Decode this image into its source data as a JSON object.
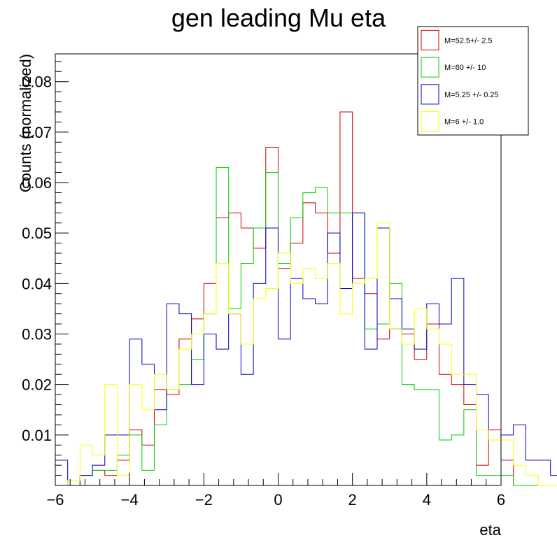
{
  "chart_data": {
    "type": "histogram",
    "title": "gen leading Mu eta",
    "xlabel": "eta",
    "ylabel": "Counts (normalized)",
    "xlim": [
      -6,
      6
    ],
    "ylim": [
      0,
      0.0855
    ],
    "x_ticks": [
      -6,
      -4,
      -2,
      0,
      2,
      4,
      6
    ],
    "y_ticks": [
      0.01,
      0.02,
      0.03,
      0.04,
      0.05,
      0.06,
      0.07,
      0.08
    ],
    "x_tick_labels": [
      "−6",
      "−4",
      "−2",
      "0",
      "2",
      "4",
      "6"
    ],
    "y_tick_labels": [
      "0.01",
      "0.02",
      "0.03",
      "0.04",
      "0.05",
      "0.06",
      "0.07",
      "0.08"
    ],
    "bin_edges_start": -6,
    "bin_width": 0.3333,
    "legend_position": "top-right",
    "grid": false,
    "series": [
      {
        "name": "M=52.5+/- 2.5",
        "color": "#cc0000",
        "values": [
          0.0,
          0.0,
          0.002,
          0.003,
          0.002,
          0.005,
          0.011,
          0.008,
          0.019,
          0.018,
          0.029,
          0.033,
          0.04,
          0.053,
          0.054,
          0.051,
          0.047,
          0.067,
          0.043,
          0.048,
          0.056,
          0.054,
          0.046,
          0.074,
          0.041,
          0.038,
          0.029,
          0.031,
          0.03,
          0.025,
          0.032,
          0.022,
          0.02,
          0.016,
          0.004,
          0.011,
          0.005,
          0.0,
          0.0,
          0.0,
          0.0,
          0.0,
          0.0,
          0.0,
          0.0,
          0.0,
          0.0,
          0.0
        ]
      },
      {
        "name": "M=60 +/- 10",
        "color": "#00cc00",
        "values": [
          0.0,
          0.0,
          0.002,
          0.003,
          0.003,
          0.006,
          0.01,
          0.003,
          0.012,
          0.019,
          0.02,
          0.025,
          0.034,
          0.063,
          0.035,
          0.044,
          0.051,
          0.062,
          0.044,
          0.053,
          0.058,
          0.059,
          0.054,
          0.054,
          0.054,
          0.031,
          0.032,
          0.04,
          0.02,
          0.019,
          0.019,
          0.009,
          0.01,
          0.015,
          0.002,
          0.002,
          0.002,
          0.0,
          0.0,
          0.0,
          0.0,
          0.0,
          0.0,
          0.0,
          0.0,
          0.0,
          0.0,
          0.0
        ]
      },
      {
        "name": "M=5.25 +/- 0.25",
        "color": "#0000cc",
        "values": [
          0.005,
          0.0,
          0.002,
          0.004,
          0.01,
          0.01,
          0.029,
          0.024,
          0.015,
          0.036,
          0.034,
          0.02,
          0.03,
          0.027,
          0.034,
          0.022,
          0.04,
          0.051,
          0.029,
          0.041,
          0.037,
          0.036,
          0.05,
          0.039,
          0.054,
          0.027,
          0.051,
          0.037,
          0.031,
          0.027,
          0.036,
          0.032,
          0.041,
          0.02,
          0.018,
          0.009,
          0.01,
          0.012,
          0.005,
          0.005,
          0.002,
          0.0,
          0.0,
          0.0,
          0.0,
          0.0,
          0.0,
          0.0
        ]
      },
      {
        "name": "M=6 +/- 1.0",
        "color": "#ffff00",
        "values": [
          0.0,
          0.001,
          0.008,
          0.006,
          0.02,
          0.002,
          0.02,
          0.015,
          0.022,
          0.019,
          0.027,
          0.03,
          0.034,
          0.044,
          0.034,
          0.028,
          0.037,
          0.039,
          0.046,
          0.04,
          0.043,
          0.041,
          0.044,
          0.034,
          0.04,
          0.041,
          0.052,
          0.031,
          0.028,
          0.035,
          0.031,
          0.028,
          0.022,
          0.022,
          0.011,
          0.009,
          0.009,
          0.004,
          0.002,
          0.0,
          0.0,
          0.0,
          0.0,
          0.0,
          0.0,
          0.0,
          0.0,
          0.0
        ]
      }
    ]
  }
}
